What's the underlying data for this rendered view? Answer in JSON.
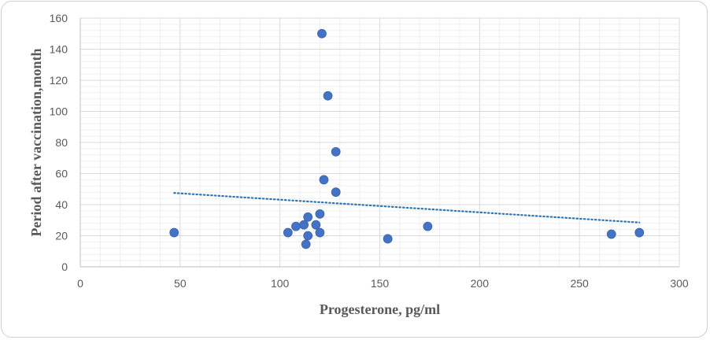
{
  "chart_data": {
    "type": "scatter",
    "title": "",
    "xlabel": "Progesterone, pg/ml",
    "ylabel": "Period after vaccination,month",
    "xlim": [
      0,
      300
    ],
    "ylim": [
      0,
      160
    ],
    "x_ticks": [
      0,
      50,
      100,
      150,
      200,
      250,
      300
    ],
    "y_ticks": [
      0,
      20,
      40,
      60,
      80,
      100,
      120,
      140,
      160
    ],
    "grid": true,
    "legend": "none",
    "point_color": "#4472c4",
    "trendline": {
      "type": "linear",
      "style": "dotted",
      "color": "#2e75b6",
      "from": [
        47,
        47.5
      ],
      "to": [
        280,
        28.5
      ]
    },
    "points": [
      {
        "x": 47,
        "y": 22
      },
      {
        "x": 104,
        "y": 22
      },
      {
        "x": 108,
        "y": 26
      },
      {
        "x": 112,
        "y": 27
      },
      {
        "x": 113,
        "y": 14.5
      },
      {
        "x": 114,
        "y": 20
      },
      {
        "x": 114,
        "y": 32
      },
      {
        "x": 118,
        "y": 27
      },
      {
        "x": 120,
        "y": 22
      },
      {
        "x": 120,
        "y": 34
      },
      {
        "x": 121,
        "y": 150
      },
      {
        "x": 122,
        "y": 56
      },
      {
        "x": 124,
        "y": 110
      },
      {
        "x": 128,
        "y": 74
      },
      {
        "x": 128,
        "y": 48
      },
      {
        "x": 154,
        "y": 18
      },
      {
        "x": 174,
        "y": 26
      },
      {
        "x": 266,
        "y": 21
      },
      {
        "x": 280,
        "y": 22
      }
    ]
  }
}
